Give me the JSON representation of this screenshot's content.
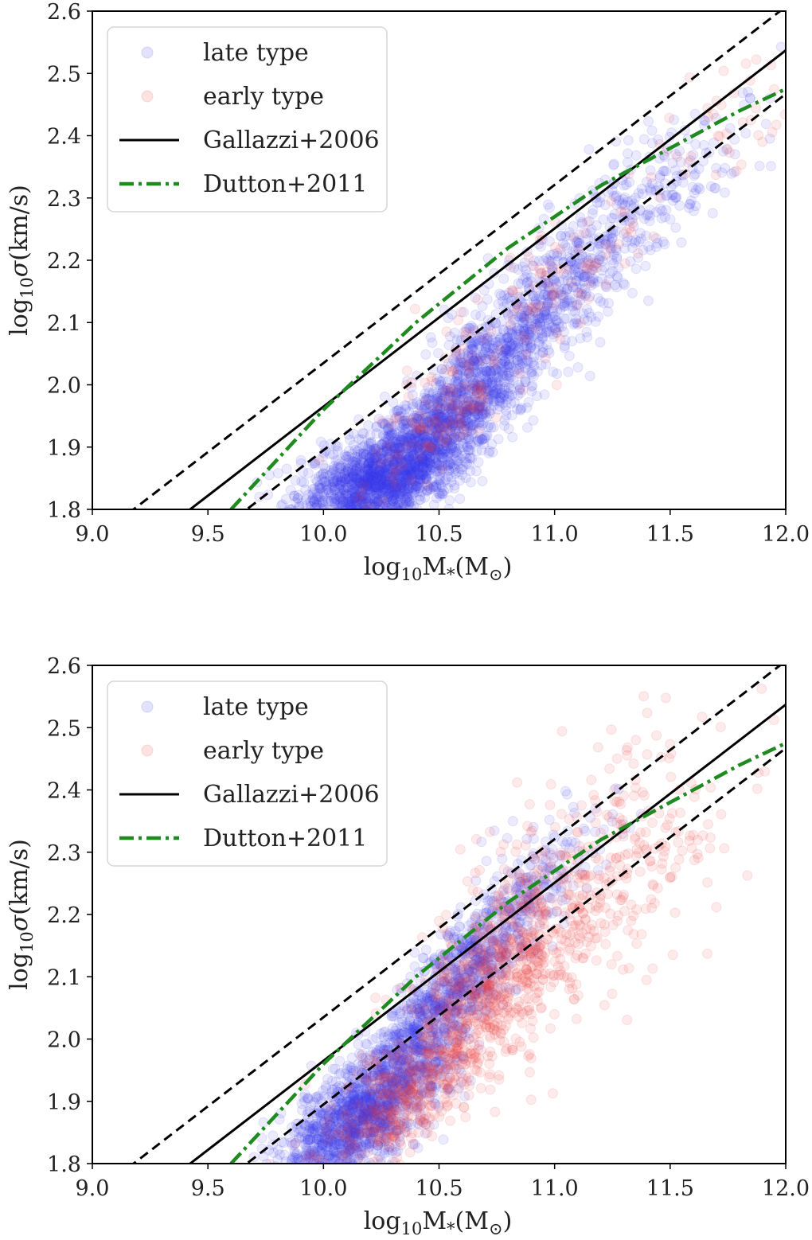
{
  "colors": {
    "late": "#3b3bf0",
    "early": "#f03b3b",
    "gallazzi": "#000000",
    "dutton": "#1f8a1f"
  },
  "chart_data": [
    {
      "type": "scatter",
      "panel": "top",
      "xlabel_main": "log",
      "xlabel_sub": "10",
      "xlabel_rest": "M",
      "xlabel_star": "*",
      "xlabel_paren": "(M",
      "xlabel_sun": "⊙",
      "xlabel_close": ")",
      "ylabel_main": "log",
      "ylabel_sub": "10",
      "ylabel_sigma": "σ",
      "ylabel_rest": "(km/s)",
      "xlim": [
        9.0,
        12.0
      ],
      "ylim": [
        1.8,
        2.6
      ],
      "xticks": [
        "9.0",
        "9.5",
        "10.0",
        "10.5",
        "11.0",
        "11.5",
        "12.0"
      ],
      "yticks": [
        "1.8",
        "1.9",
        "2.0",
        "2.1",
        "2.2",
        "2.3",
        "2.4",
        "2.5",
        "2.6"
      ],
      "legend": {
        "position": "top-left",
        "entries": [
          "late type",
          "early type",
          "Gallazzi+2006",
          "Dutton+2011"
        ]
      },
      "gallazzi_relation": {
        "slope": 0.286,
        "intercept": -0.895,
        "scatter": 0.07
      },
      "dutton_curve": {
        "x": [
          9.6,
          9.8,
          10.0,
          10.2,
          10.4,
          10.6,
          10.8,
          11.0,
          11.2,
          11.4,
          11.6,
          11.8,
          12.0
        ],
        "y": [
          1.8,
          1.88,
          1.96,
          2.03,
          2.1,
          2.16,
          2.22,
          2.27,
          2.32,
          2.36,
          2.4,
          2.44,
          2.475
        ]
      },
      "series": [
        {
          "name": "late type",
          "clusters": [
            {
              "mx": 10.25,
              "my": 1.85,
              "sx": 0.18,
              "sy": 0.045,
              "rho": 0.5,
              "n": 1500
            },
            {
              "mx": 10.6,
              "my": 1.97,
              "sx": 0.2,
              "sy": 0.08,
              "rho": 0.8,
              "n": 1200
            },
            {
              "mx": 11.05,
              "my": 2.17,
              "sx": 0.25,
              "sy": 0.09,
              "rho": 0.8,
              "n": 550
            },
            {
              "mx": 11.55,
              "my": 2.33,
              "sx": 0.2,
              "sy": 0.07,
              "rho": 0.7,
              "n": 100
            }
          ]
        },
        {
          "name": "early type",
          "clusters": [
            {
              "mx": 10.5,
              "my": 1.94,
              "sx": 0.18,
              "sy": 0.07,
              "rho": 0.8,
              "n": 130
            },
            {
              "mx": 11.0,
              "my": 2.16,
              "sx": 0.25,
              "sy": 0.08,
              "rho": 0.8,
              "n": 100
            },
            {
              "mx": 11.7,
              "my": 2.4,
              "sx": 0.2,
              "sy": 0.06,
              "rho": 0.6,
              "n": 40
            }
          ]
        }
      ]
    },
    {
      "type": "scatter",
      "panel": "bottom",
      "xlabel_main": "log",
      "xlabel_sub": "10",
      "xlabel_rest": "M",
      "xlabel_star": "*",
      "xlabel_paren": "(M",
      "xlabel_sun": "⊙",
      "xlabel_close": ")",
      "ylabel_main": "log",
      "ylabel_sub": "10",
      "ylabel_sigma": "σ",
      "ylabel_rest": "(km/s)",
      "xlim": [
        9.0,
        12.0
      ],
      "ylim": [
        1.8,
        2.6
      ],
      "xticks": [
        "9.0",
        "9.5",
        "10.0",
        "10.5",
        "11.0",
        "11.5",
        "12.0"
      ],
      "yticks": [
        "1.8",
        "1.9",
        "2.0",
        "2.1",
        "2.2",
        "2.3",
        "2.4",
        "2.5",
        "2.6"
      ],
      "legend": {
        "position": "top-left",
        "entries": [
          "late type",
          "early type",
          "Gallazzi+2006",
          "Dutton+2011"
        ]
      },
      "gallazzi_relation": {
        "slope": 0.286,
        "intercept": -0.895,
        "scatter": 0.07
      },
      "dutton_curve": {
        "x": [
          9.6,
          9.8,
          10.0,
          10.2,
          10.4,
          10.6,
          10.8,
          11.0,
          11.2,
          11.4,
          11.6,
          11.8,
          12.0
        ],
        "y": [
          1.8,
          1.88,
          1.96,
          2.03,
          2.1,
          2.16,
          2.22,
          2.27,
          2.32,
          2.36,
          2.4,
          2.44,
          2.475
        ]
      },
      "series": [
        {
          "name": "late type",
          "clusters": [
            {
              "mx": 10.15,
              "my": 1.87,
              "sx": 0.18,
              "sy": 0.06,
              "rho": 0.7,
              "n": 1300
            },
            {
              "mx": 10.5,
              "my": 2.05,
              "sx": 0.2,
              "sy": 0.09,
              "rho": 0.85,
              "n": 900
            },
            {
              "mx": 10.85,
              "my": 2.22,
              "sx": 0.2,
              "sy": 0.08,
              "rho": 0.8,
              "n": 250
            }
          ]
        },
        {
          "name": "early type",
          "clusters": [
            {
              "mx": 10.35,
              "my": 1.9,
              "sx": 0.2,
              "sy": 0.06,
              "rho": 0.7,
              "n": 350
            },
            {
              "mx": 10.75,
              "my": 2.1,
              "sx": 0.22,
              "sy": 0.1,
              "rho": 0.75,
              "n": 700
            },
            {
              "mx": 11.2,
              "my": 2.25,
              "sx": 0.3,
              "sy": 0.12,
              "rho": 0.6,
              "n": 300
            }
          ]
        }
      ]
    }
  ]
}
